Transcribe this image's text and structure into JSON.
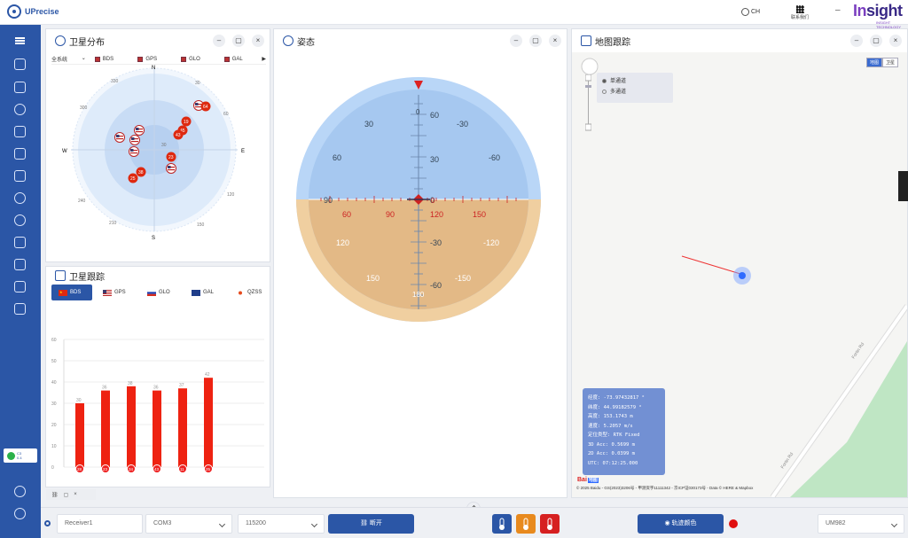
{
  "app": {
    "title": "UPrecise",
    "lang": "CH",
    "qr_label": "联系我们",
    "brand_prefix": "In",
    "brand_suffix": "sight",
    "brand_sub": "INSIGHT TECHNOLOGY",
    "min_icon": "–"
  },
  "sidebar": {
    "badge": {
      "line1": "C3",
      "line2": "0.4"
    }
  },
  "sat_dist": {
    "title": "卫星分布",
    "selector": "全系统",
    "systems": [
      "BDS",
      "GPS",
      "GLO",
      "GAL"
    ],
    "compass": {
      "N": "N",
      "E": "E",
      "S": "S",
      "W": "W"
    },
    "angles": [
      "330",
      "30",
      "300",
      "60",
      "240",
      "120",
      "210",
      "150"
    ],
    "elev": "30",
    "sats": [
      {
        "sys": "gps",
        "label": ""
      },
      {
        "sys": "bds",
        "label": "64"
      },
      {
        "sys": "bds",
        "label": "19"
      },
      {
        "sys": "bds",
        "label": "45"
      },
      {
        "sys": "bds",
        "label": "43"
      },
      {
        "sys": "gps",
        "label": ""
      },
      {
        "sys": "gps",
        "label": ""
      },
      {
        "sys": "gps",
        "label": ""
      },
      {
        "sys": "gps",
        "label": ""
      },
      {
        "sys": "bds",
        "label": "23"
      },
      {
        "sys": "gps",
        "label": ""
      },
      {
        "sys": "bds",
        "label": "38"
      },
      {
        "sys": "bds",
        "label": "25"
      }
    ]
  },
  "attitude": {
    "title": "姿态",
    "pitch_labels": [
      "0",
      "30",
      "60",
      "90",
      "120",
      "150",
      "180",
      "-30",
      "-60",
      "-90",
      "-120",
      "-150"
    ],
    "roll_labels": [
      "30",
      "-30",
      "60",
      "-60",
      "90",
      "-90",
      "120",
      "-120",
      "150",
      "-150"
    ],
    "heading_labels": [
      "60",
      "90",
      "120",
      "150",
      "0"
    ]
  },
  "sat_track": {
    "title": "卫星跟踪",
    "tabs": [
      "BDS",
      "GPS",
      "GLO",
      "GAL",
      "QZSS",
      "S"
    ],
    "active_tab": 0,
    "chart_data": {
      "type": "bar",
      "categories": [
        "28",
        "23",
        "34",
        "43",
        "11",
        "25"
      ],
      "values": [
        30,
        36,
        38,
        36,
        37,
        42
      ],
      "ylim": [
        0,
        60
      ],
      "yticks": [
        "0",
        "10",
        "20",
        "30",
        "40",
        "50",
        "60"
      ],
      "bar_color": "#ee2211"
    }
  },
  "map": {
    "title": "地图跟踪",
    "types": [
      "地图",
      "卫星"
    ],
    "modes": [
      "单通道",
      "多通道"
    ],
    "info": [
      "经度: -73.97432817 °",
      "纬度: 44.99182579 °",
      "高度: 153.1743 m",
      "速度: 5.2057 m/s",
      "定位类型: RTK Fixed",
      "3D Acc: 0.5699 m",
      "2D Acc: 0.0399 m",
      "UTC: 07:12:25.000"
    ],
    "road": "Fortin Rd",
    "baidu": "Bai",
    "baidu_suffix": "地图",
    "footer": "© 2025 Baidu - GS(2023)3206号 - 甲测资字11111342 - 京ICP证030173号 - Data © HERE & Mapbox"
  },
  "bottom": {
    "receiver": "Receiver1",
    "port": "COM3",
    "baud": "115200",
    "connect_label": "断开",
    "track_color_label": "轨迹颜色",
    "device": "UM982",
    "track_color": "#e01010"
  },
  "colors": {
    "primary": "#2b56a6",
    "sky": "#a7c9f0",
    "ground": "#e3b986",
    "bar": "#ee2211"
  }
}
